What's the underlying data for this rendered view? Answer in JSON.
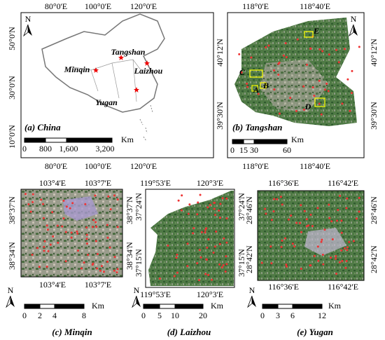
{
  "panels": [
    {
      "caption": "(a) China",
      "north": "N",
      "top_labels": [
        "80°0'E",
        "100°0'E",
        "120°0'E"
      ],
      "bottom_labels": [
        "80°0'E",
        "100°0'E",
        "120°0'E"
      ],
      "left_labels": [
        "50°0'N",
        "30°0'N",
        "10°0'N"
      ],
      "scale_unit": "Km",
      "scale_labels": [
        "0",
        "800",
        "1,600",
        "3,200"
      ],
      "sites": [
        "Tangshan",
        "Minqin",
        "Laizhou",
        "Yugan"
      ]
    },
    {
      "caption": "(b) Tangshan",
      "north": "N",
      "top_labels": [
        "118°0'E",
        "118°40'E"
      ],
      "bottom_labels": [
        "118°0'E",
        "118°40'E"
      ],
      "left_labels": [
        "40°12'N",
        "39°30'N"
      ],
      "right_labels": [
        "40°12'N",
        "39°30'N"
      ],
      "scale_unit": "Km",
      "scale_labels": [
        "0",
        "15",
        "30",
        "60"
      ],
      "sites": [
        "A",
        "B",
        "C",
        "D",
        "E"
      ]
    },
    {
      "caption": "(c) Minqin",
      "north": "N",
      "top_labels": [
        "103°4'E",
        "103°7'E"
      ],
      "bottom_labels": [
        "103°4'E",
        "103°7'E"
      ],
      "left_labels": [
        "38°37'N",
        "38°34'N"
      ],
      "right_labels": [
        "38°37'N",
        "38°34'N"
      ],
      "scale_unit": "Km",
      "scale_labels": [
        "0",
        "2",
        "4",
        "8"
      ]
    },
    {
      "caption": "(d) Laizhou",
      "north": "N",
      "top_labels": [
        "119°53'E",
        "120°3'E"
      ],
      "bottom_labels": [
        "119°53'E",
        "120°3'E"
      ],
      "left_labels": [
        "37°24'N",
        "37°15'N"
      ],
      "right_labels": [
        "37°24'N",
        "37°15'N"
      ],
      "scale_unit": "Km",
      "scale_labels": [
        "0",
        "5",
        "10",
        "20"
      ]
    },
    {
      "caption": "(e) Yugan",
      "north": "N",
      "top_labels": [
        "116°36'E",
        "116°42'E"
      ],
      "bottom_labels": [
        "116°36'E",
        "116°42'E"
      ],
      "left_labels": [
        "28°46'N",
        "28°42'N"
      ],
      "right_labels": [
        "28°46'N",
        "28°42'N"
      ],
      "scale_unit": "Km",
      "scale_labels": [
        "0",
        "3",
        "6",
        "12"
      ]
    }
  ]
}
